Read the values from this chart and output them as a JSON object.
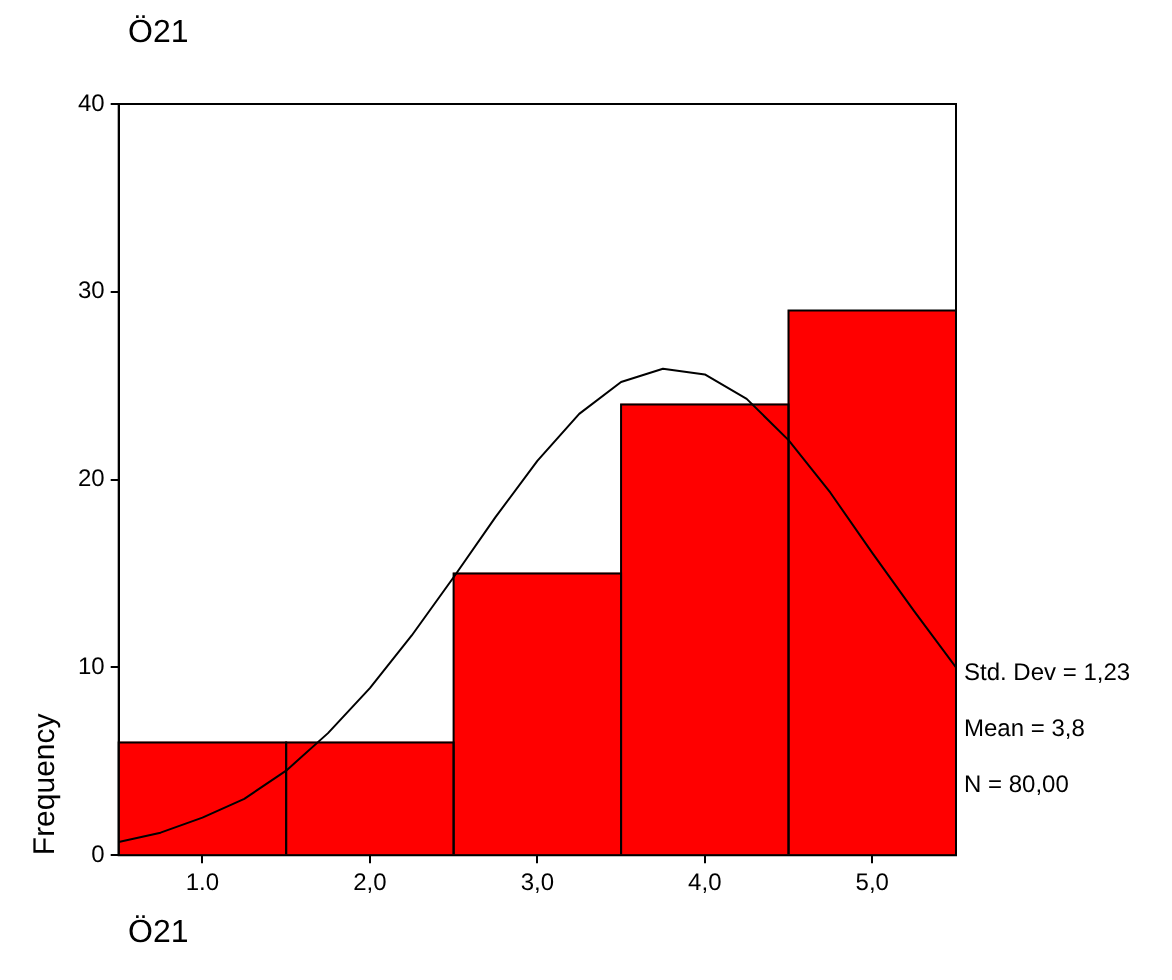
{
  "chart_data": {
    "type": "histogram",
    "title": "Ö21",
    "xlabel": "Ö21",
    "ylabel": "Frequency",
    "series": [
      {
        "type": "histogram",
        "bins": [
          0.5,
          1.5,
          2.5,
          3.5,
          4.5,
          5.5
        ],
        "values": [
          6,
          6,
          15,
          24,
          29
        ],
        "color": "#ff0000"
      },
      {
        "type": "line",
        "color": "#000000",
        "x": [
          0.5,
          0.75,
          1.0,
          1.25,
          1.5,
          1.75,
          2.0,
          2.25,
          2.5,
          2.75,
          3.0,
          3.25,
          3.5,
          3.75,
          4.0,
          4.25,
          4.5,
          4.75,
          5.0,
          5.25,
          5.5
        ],
        "values": [
          0.7,
          1.2,
          2.0,
          3.0,
          4.5,
          6.5,
          8.9,
          11.7,
          14.8,
          18.0,
          21.0,
          23.5,
          25.2,
          25.9,
          25.6,
          24.3,
          22.1,
          19.3,
          16.1,
          13.0,
          10.0
        ]
      }
    ],
    "xlim": [
      0.5,
      5.5
    ],
    "xticks": [
      {
        "value": 1,
        "label": "1.0"
      },
      {
        "value": 2,
        "label": "2,0"
      },
      {
        "value": 3,
        "label": "3,0"
      },
      {
        "value": 4,
        "label": "4,0"
      },
      {
        "value": 5,
        "label": "5,0"
      }
    ],
    "ylim": [
      0,
      40
    ],
    "yticks": [
      0,
      10,
      20,
      30,
      40
    ],
    "annotations": [
      "Std. Dev = 1,23",
      "Mean = 3,8",
      "N = 80,00"
    ],
    "grid": false,
    "legend": false
  }
}
